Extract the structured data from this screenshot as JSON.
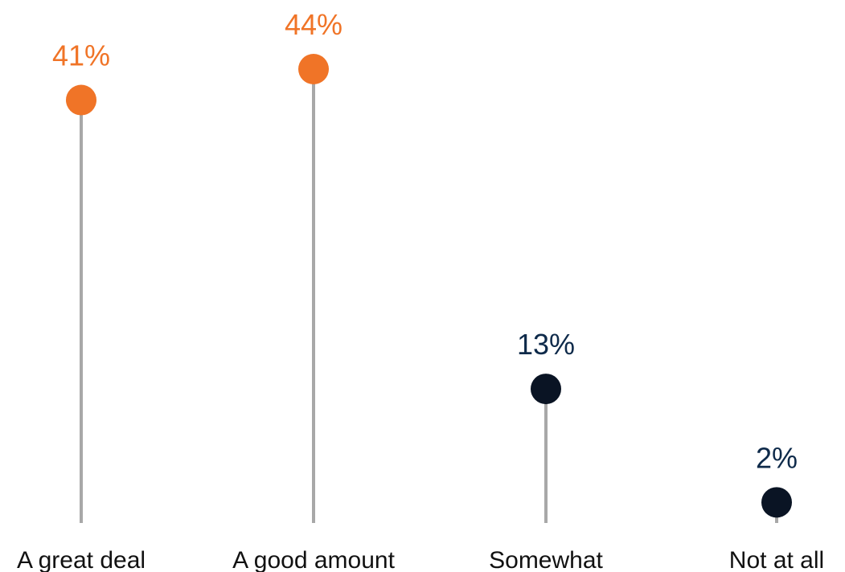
{
  "chart_data": {
    "type": "lollipop",
    "categories": [
      "A great deal",
      "A good amount",
      "Somewhat",
      "Not at all"
    ],
    "values": [
      41,
      44,
      13,
      2
    ],
    "data_labels": [
      "41%",
      "44%",
      "13%",
      "2%"
    ],
    "value_unit": "%",
    "title": "",
    "xlabel": "",
    "ylabel": "",
    "ylim": [
      0,
      44
    ],
    "grid": false,
    "legend": "none",
    "colors": {
      "highlight_dot": "#F07427",
      "highlight_label": "#F07427",
      "dark_dot": "#0A1424",
      "dark_label": "#0E2A4A",
      "stem": "#A8A8A8"
    },
    "highlighted_categories": [
      "A great deal",
      "A good amount"
    ]
  }
}
